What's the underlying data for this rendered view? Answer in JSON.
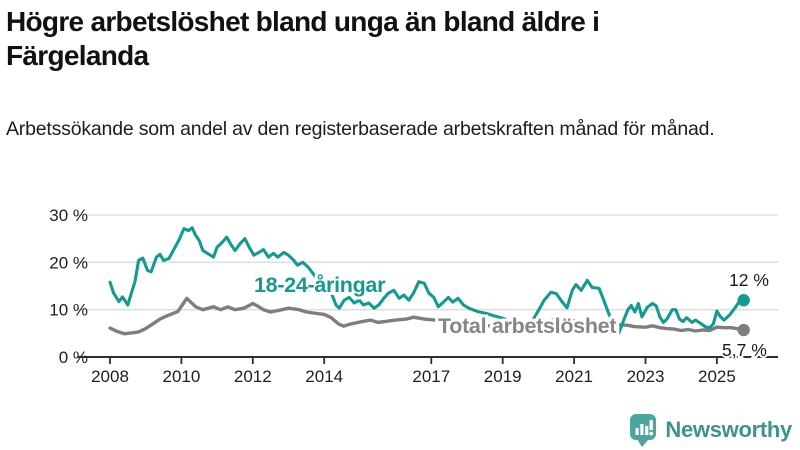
{
  "title": "Högre arbetslöshet bland unga än bland äldre i Färgelanda",
  "subtitle": "Arbetssökande som andel av den registerbaserade arbetskraften månad för månad.",
  "footer": {
    "brand": "Newsworthy"
  },
  "colors": {
    "teal": "#149a90",
    "gray": "#7e7e7e",
    "gray_label": "#868686",
    "grid": "#dbdbdb",
    "axis": "#2f2f2f",
    "tick_text": "#1f1f1f",
    "value_text": "#1a1a1a",
    "logo_bubble": "#4ca69d",
    "logo_wordmark": "#3e938a"
  },
  "chart_data": {
    "type": "line",
    "title": "Högre arbetslöshet bland unga än bland äldre i Färgelanda",
    "xlabel": "",
    "ylabel": "",
    "unit": "%",
    "grid": true,
    "x_axis": {
      "range": [
        2007.3,
        2026.3
      ],
      "ticks": [
        2008,
        2010,
        2012,
        2014,
        2017,
        2019,
        2021,
        2023,
        2025
      ],
      "tick_labels": [
        "2008",
        "2010",
        "2012",
        "2014",
        "2017",
        "2019",
        "2021",
        "2023",
        "2025"
      ]
    },
    "y_axis": {
      "range": [
        0,
        30
      ],
      "ticks": [
        0,
        10,
        20,
        30
      ],
      "tick_labels": [
        "0 %",
        "10 %",
        "20 %",
        "30 %"
      ]
    },
    "series": [
      {
        "name": "18-24-åringar",
        "end_label": "12 %",
        "end_value": 12,
        "points": [
          [
            2008.0,
            15.8
          ],
          [
            2008.1,
            13.5
          ],
          [
            2008.25,
            11.7
          ],
          [
            2008.35,
            12.7
          ],
          [
            2008.5,
            11.0
          ],
          [
            2008.6,
            13.5
          ],
          [
            2008.7,
            16.0
          ],
          [
            2008.8,
            20.4
          ],
          [
            2008.92,
            20.9
          ],
          [
            2009.05,
            18.3
          ],
          [
            2009.15,
            18.0
          ],
          [
            2009.3,
            21.1
          ],
          [
            2009.4,
            21.7
          ],
          [
            2009.5,
            20.4
          ],
          [
            2009.65,
            20.8
          ],
          [
            2009.8,
            22.9
          ],
          [
            2009.95,
            25.0
          ],
          [
            2010.07,
            27.1
          ],
          [
            2010.2,
            26.7
          ],
          [
            2010.3,
            27.3
          ],
          [
            2010.4,
            25.7
          ],
          [
            2010.5,
            24.6
          ],
          [
            2010.6,
            22.5
          ],
          [
            2010.75,
            21.8
          ],
          [
            2010.9,
            21.1
          ],
          [
            2011.0,
            23.2
          ],
          [
            2011.15,
            24.3
          ],
          [
            2011.27,
            25.3
          ],
          [
            2011.4,
            23.6
          ],
          [
            2011.5,
            22.5
          ],
          [
            2011.65,
            24.0
          ],
          [
            2011.78,
            25.0
          ],
          [
            2011.9,
            23.2
          ],
          [
            2012.03,
            21.5
          ],
          [
            2012.17,
            22.1
          ],
          [
            2012.3,
            22.7
          ],
          [
            2012.44,
            21.1
          ],
          [
            2012.58,
            21.9
          ],
          [
            2012.7,
            21.1
          ],
          [
            2012.87,
            22.1
          ],
          [
            2013.0,
            21.5
          ],
          [
            2013.15,
            20.4
          ],
          [
            2013.25,
            19.4
          ],
          [
            2013.4,
            20.0
          ],
          [
            2013.55,
            19.0
          ],
          [
            2013.7,
            17.5
          ],
          [
            2013.85,
            16.0
          ],
          [
            2014.0,
            14.8
          ],
          [
            2014.2,
            13.5
          ],
          [
            2014.33,
            11.0
          ],
          [
            2014.42,
            10.3
          ],
          [
            2014.56,
            12.0
          ],
          [
            2014.7,
            12.6
          ],
          [
            2014.84,
            11.4
          ],
          [
            2014.98,
            12.0
          ],
          [
            2015.1,
            11.0
          ],
          [
            2015.25,
            11.4
          ],
          [
            2015.4,
            10.3
          ],
          [
            2015.53,
            11.0
          ],
          [
            2015.67,
            12.4
          ],
          [
            2015.8,
            13.5
          ],
          [
            2015.95,
            14.1
          ],
          [
            2016.1,
            12.4
          ],
          [
            2016.23,
            13.1
          ],
          [
            2016.37,
            12.0
          ],
          [
            2016.5,
            13.5
          ],
          [
            2016.65,
            15.9
          ],
          [
            2016.8,
            15.6
          ],
          [
            2016.93,
            13.5
          ],
          [
            2017.07,
            12.6
          ],
          [
            2017.2,
            10.6
          ],
          [
            2017.34,
            11.6
          ],
          [
            2017.48,
            12.6
          ],
          [
            2017.6,
            11.6
          ],
          [
            2017.75,
            12.4
          ],
          [
            2017.9,
            11.0
          ],
          [
            2018.05,
            10.3
          ],
          [
            2018.3,
            9.6
          ],
          [
            2018.55,
            9.2
          ],
          [
            2018.8,
            8.6
          ],
          [
            2019.0,
            8.2
          ],
          [
            2019.2,
            7.6
          ],
          [
            2019.4,
            6.5
          ],
          [
            2019.55,
            4.9
          ],
          [
            2019.7,
            6.2
          ],
          [
            2019.9,
            8.5
          ],
          [
            2020.05,
            10.5
          ],
          [
            2020.16,
            12.0
          ],
          [
            2020.35,
            13.7
          ],
          [
            2020.5,
            13.4
          ],
          [
            2020.65,
            11.8
          ],
          [
            2020.8,
            10.4
          ],
          [
            2020.95,
            14.1
          ],
          [
            2021.05,
            15.3
          ],
          [
            2021.2,
            14.1
          ],
          [
            2021.37,
            16.2
          ],
          [
            2021.5,
            14.7
          ],
          [
            2021.7,
            14.5
          ],
          [
            2021.8,
            12.6
          ],
          [
            2021.97,
            9.2
          ],
          [
            2022.1,
            7.1
          ],
          [
            2022.25,
            5.0
          ],
          [
            2022.4,
            8.0
          ],
          [
            2022.5,
            9.9
          ],
          [
            2022.6,
            10.9
          ],
          [
            2022.7,
            9.5
          ],
          [
            2022.8,
            11.3
          ],
          [
            2022.9,
            8.5
          ],
          [
            2023.05,
            10.5
          ],
          [
            2023.2,
            11.3
          ],
          [
            2023.3,
            10.8
          ],
          [
            2023.4,
            8.5
          ],
          [
            2023.5,
            7.3
          ],
          [
            2023.6,
            8.0
          ],
          [
            2023.75,
            10.0
          ],
          [
            2023.85,
            10.0
          ],
          [
            2023.95,
            8.0
          ],
          [
            2024.05,
            7.5
          ],
          [
            2024.15,
            8.3
          ],
          [
            2024.3,
            7.3
          ],
          [
            2024.4,
            7.8
          ],
          [
            2024.5,
            7.3
          ],
          [
            2024.6,
            6.8
          ],
          [
            2024.7,
            6.3
          ],
          [
            2024.8,
            6.2
          ],
          [
            2024.9,
            7.0
          ],
          [
            2025.0,
            9.7
          ],
          [
            2025.1,
            8.5
          ],
          [
            2025.2,
            7.8
          ],
          [
            2025.35,
            8.8
          ],
          [
            2025.5,
            10.3
          ],
          [
            2025.6,
            11.4
          ],
          [
            2025.75,
            12.0
          ]
        ]
      },
      {
        "name": "Total arbetslöshet",
        "end_label": "5,7 %",
        "end_value": 5.7,
        "points": [
          [
            2008.0,
            6.1
          ],
          [
            2008.2,
            5.4
          ],
          [
            2008.4,
            4.9
          ],
          [
            2008.6,
            5.1
          ],
          [
            2008.8,
            5.3
          ],
          [
            2009.0,
            6.0
          ],
          [
            2009.2,
            7.0
          ],
          [
            2009.4,
            8.0
          ],
          [
            2009.6,
            8.7
          ],
          [
            2009.9,
            9.6
          ],
          [
            2010.15,
            12.4
          ],
          [
            2010.4,
            10.6
          ],
          [
            2010.6,
            10.0
          ],
          [
            2010.9,
            10.6
          ],
          [
            2011.1,
            10.0
          ],
          [
            2011.3,
            10.6
          ],
          [
            2011.5,
            10.0
          ],
          [
            2011.75,
            10.3
          ],
          [
            2012.0,
            11.3
          ],
          [
            2012.15,
            10.7
          ],
          [
            2012.3,
            10.0
          ],
          [
            2012.5,
            9.5
          ],
          [
            2012.7,
            9.8
          ],
          [
            2013.0,
            10.3
          ],
          [
            2013.3,
            10.0
          ],
          [
            2013.5,
            9.5
          ],
          [
            2013.7,
            9.3
          ],
          [
            2014.0,
            9.0
          ],
          [
            2014.2,
            8.3
          ],
          [
            2014.4,
            7.0
          ],
          [
            2014.55,
            6.5
          ],
          [
            2014.7,
            6.9
          ],
          [
            2015.0,
            7.4
          ],
          [
            2015.3,
            7.8
          ],
          [
            2015.5,
            7.3
          ],
          [
            2015.7,
            7.5
          ],
          [
            2016.0,
            7.8
          ],
          [
            2016.3,
            8.0
          ],
          [
            2016.5,
            8.4
          ],
          [
            2016.8,
            8.0
          ],
          [
            2017.1,
            7.8
          ],
          [
            2017.4,
            7.5
          ],
          [
            2017.7,
            7.3
          ],
          [
            2018.0,
            7.0
          ],
          [
            2018.3,
            6.8
          ],
          [
            2018.6,
            6.6
          ],
          [
            2019.0,
            6.4
          ],
          [
            2019.4,
            6.2
          ],
          [
            2019.8,
            6.5
          ],
          [
            2020.2,
            7.5
          ],
          [
            2020.5,
            8.0
          ],
          [
            2020.8,
            7.8
          ],
          [
            2021.1,
            7.6
          ],
          [
            2021.4,
            7.3
          ],
          [
            2021.7,
            7.0
          ],
          [
            2022.0,
            6.9
          ],
          [
            2022.3,
            6.8
          ],
          [
            2022.5,
            6.7
          ],
          [
            2022.7,
            6.4
          ],
          [
            2023.0,
            6.3
          ],
          [
            2023.2,
            6.6
          ],
          [
            2023.4,
            6.2
          ],
          [
            2023.6,
            6.0
          ],
          [
            2023.8,
            5.9
          ],
          [
            2024.0,
            5.6
          ],
          [
            2024.2,
            5.8
          ],
          [
            2024.4,
            5.5
          ],
          [
            2024.6,
            5.7
          ],
          [
            2024.8,
            5.6
          ],
          [
            2025.0,
            6.3
          ],
          [
            2025.2,
            6.2
          ],
          [
            2025.4,
            6.2
          ],
          [
            2025.55,
            6.0
          ],
          [
            2025.75,
            5.7
          ]
        ]
      }
    ],
    "legend_position": "inline-labels"
  }
}
